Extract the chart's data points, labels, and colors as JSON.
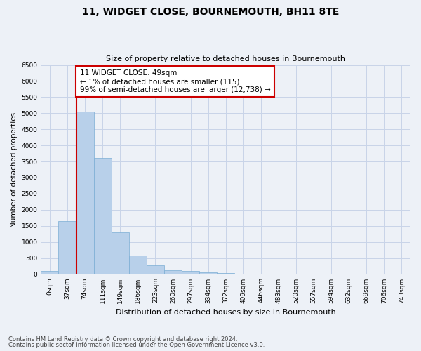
{
  "title": "11, WIDGET CLOSE, BOURNEMOUTH, BH11 8TE",
  "subtitle": "Size of property relative to detached houses in Bournemouth",
  "xlabel": "Distribution of detached houses by size in Bournemouth",
  "ylabel": "Number of detached properties",
  "footer_line1": "Contains HM Land Registry data © Crown copyright and database right 2024.",
  "footer_line2": "Contains public sector information licensed under the Open Government Licence v3.0.",
  "annotation_line1": "11 WIDGET CLOSE: 49sqm",
  "annotation_line2": "← 1% of detached houses are smaller (115)",
  "annotation_line3": "99% of semi-detached houses are larger (12,738) →",
  "bar_labels": [
    "0sqm",
    "37sqm",
    "74sqm",
    "111sqm",
    "149sqm",
    "186sqm",
    "223sqm",
    "260sqm",
    "297sqm",
    "334sqm",
    "372sqm",
    "409sqm",
    "446sqm",
    "483sqm",
    "520sqm",
    "557sqm",
    "594sqm",
    "632sqm",
    "669sqm",
    "706sqm",
    "743sqm"
  ],
  "bar_values": [
    100,
    1650,
    5050,
    3600,
    1300,
    580,
    280,
    120,
    90,
    55,
    30,
    15,
    8,
    4,
    3,
    2,
    1,
    1,
    0,
    0,
    0
  ],
  "bar_color": "#b8d0ea",
  "bar_edge_color": "#7aadd4",
  "red_line_color": "#cc0000",
  "annotation_box_edge_color": "#cc0000",
  "ylim": [
    0,
    6500
  ],
  "yticks": [
    0,
    500,
    1000,
    1500,
    2000,
    2500,
    3000,
    3500,
    4000,
    4500,
    5000,
    5500,
    6000,
    6500
  ],
  "grid_color": "#c8d4e8",
  "background_color": "#edf1f7",
  "figsize": [
    6.0,
    5.0
  ],
  "dpi": 100,
  "red_line_x": 1.5,
  "title_fontsize": 10,
  "subtitle_fontsize": 8,
  "ylabel_fontsize": 7.5,
  "xlabel_fontsize": 8,
  "tick_fontsize": 6.5,
  "annotation_fontsize": 7.5,
  "footer_fontsize": 6
}
